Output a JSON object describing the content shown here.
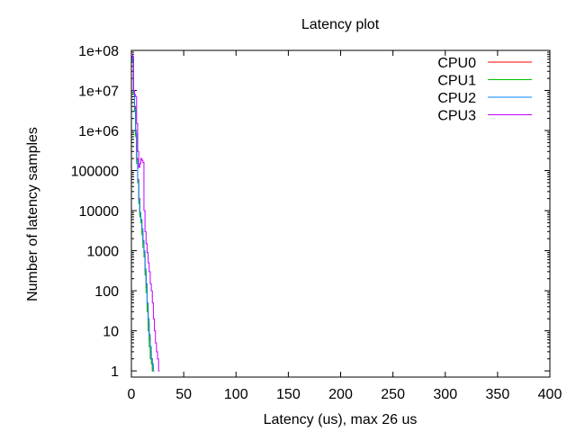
{
  "chart_data": {
    "type": "line",
    "title": "Latency plot",
    "xlabel": "Latency (us), max 26 us",
    "ylabel": "Number of latency samples",
    "xlim": [
      0,
      400
    ],
    "ylim": [
      0.7,
      100000000
    ],
    "y_scale": "log",
    "x_ticks": [
      "0",
      "50",
      "100",
      "150",
      "200",
      "250",
      "300",
      "350",
      "400"
    ],
    "x_tick_values": [
      0,
      50,
      100,
      150,
      200,
      250,
      300,
      350,
      400
    ],
    "y_ticks": [
      "1",
      "10",
      "100",
      "1000",
      "10000",
      "100000",
      "1e+06",
      "1e+07",
      "1e+08"
    ],
    "y_tick_values": [
      1,
      10,
      100,
      1000,
      10000,
      100000,
      1000000,
      10000000,
      100000000
    ],
    "grid": false,
    "legend_position": "top-right",
    "series": [
      {
        "name": "CPU0",
        "color": "#ff0000",
        "x": [
          0,
          1,
          2,
          3,
          4,
          5,
          6,
          7,
          8,
          9,
          10,
          11,
          12,
          13,
          14,
          15,
          16,
          17,
          18,
          19,
          20
        ],
        "y": [
          80000000,
          60000000,
          9000000,
          4000000,
          800000,
          200000,
          60000,
          20000,
          8000,
          6000,
          3000,
          1500,
          900,
          300,
          120,
          40,
          15,
          6,
          3,
          2,
          1
        ]
      },
      {
        "name": "CPU1",
        "color": "#00c000",
        "x": [
          0,
          1,
          2,
          3,
          4,
          5,
          6,
          7,
          8,
          9,
          10,
          11,
          12,
          13,
          14,
          15,
          16,
          17,
          18,
          19,
          20
        ],
        "y": [
          75000000,
          50000000,
          8000000,
          3000000,
          700000,
          150000,
          50000,
          15000,
          7000,
          5000,
          2500,
          1200,
          700,
          250,
          90,
          30,
          10,
          4,
          2,
          1.5,
          1
        ]
      },
      {
        "name": "CPU2",
        "color": "#0080ff",
        "x": [
          0,
          1,
          2,
          3,
          4,
          5,
          6,
          7,
          8,
          9,
          10,
          11,
          12,
          13,
          14,
          15,
          16,
          17,
          18,
          19,
          20,
          21
        ],
        "y": [
          78000000,
          55000000,
          9000000,
          3500000,
          900000,
          180000,
          55000,
          18000,
          9000,
          6000,
          3500,
          1800,
          1000,
          350,
          150,
          50,
          20,
          8,
          4,
          2,
          1.5,
          1
        ]
      },
      {
        "name": "CPU3",
        "color": "#c000ff",
        "x": [
          0,
          1,
          2,
          3,
          4,
          5,
          6,
          7,
          8,
          9,
          10,
          11,
          12,
          13,
          14,
          15,
          16,
          17,
          18,
          19,
          20,
          21,
          22,
          23,
          24,
          25,
          26
        ],
        "y": [
          80000000,
          70000000,
          10000000,
          8000000,
          7000000,
          1500000,
          300000,
          120000,
          150000,
          200000,
          180000,
          160000,
          10000,
          3000,
          1500,
          900,
          500,
          300,
          150,
          100,
          50,
          20,
          10,
          5,
          3,
          2,
          1
        ]
      }
    ]
  }
}
